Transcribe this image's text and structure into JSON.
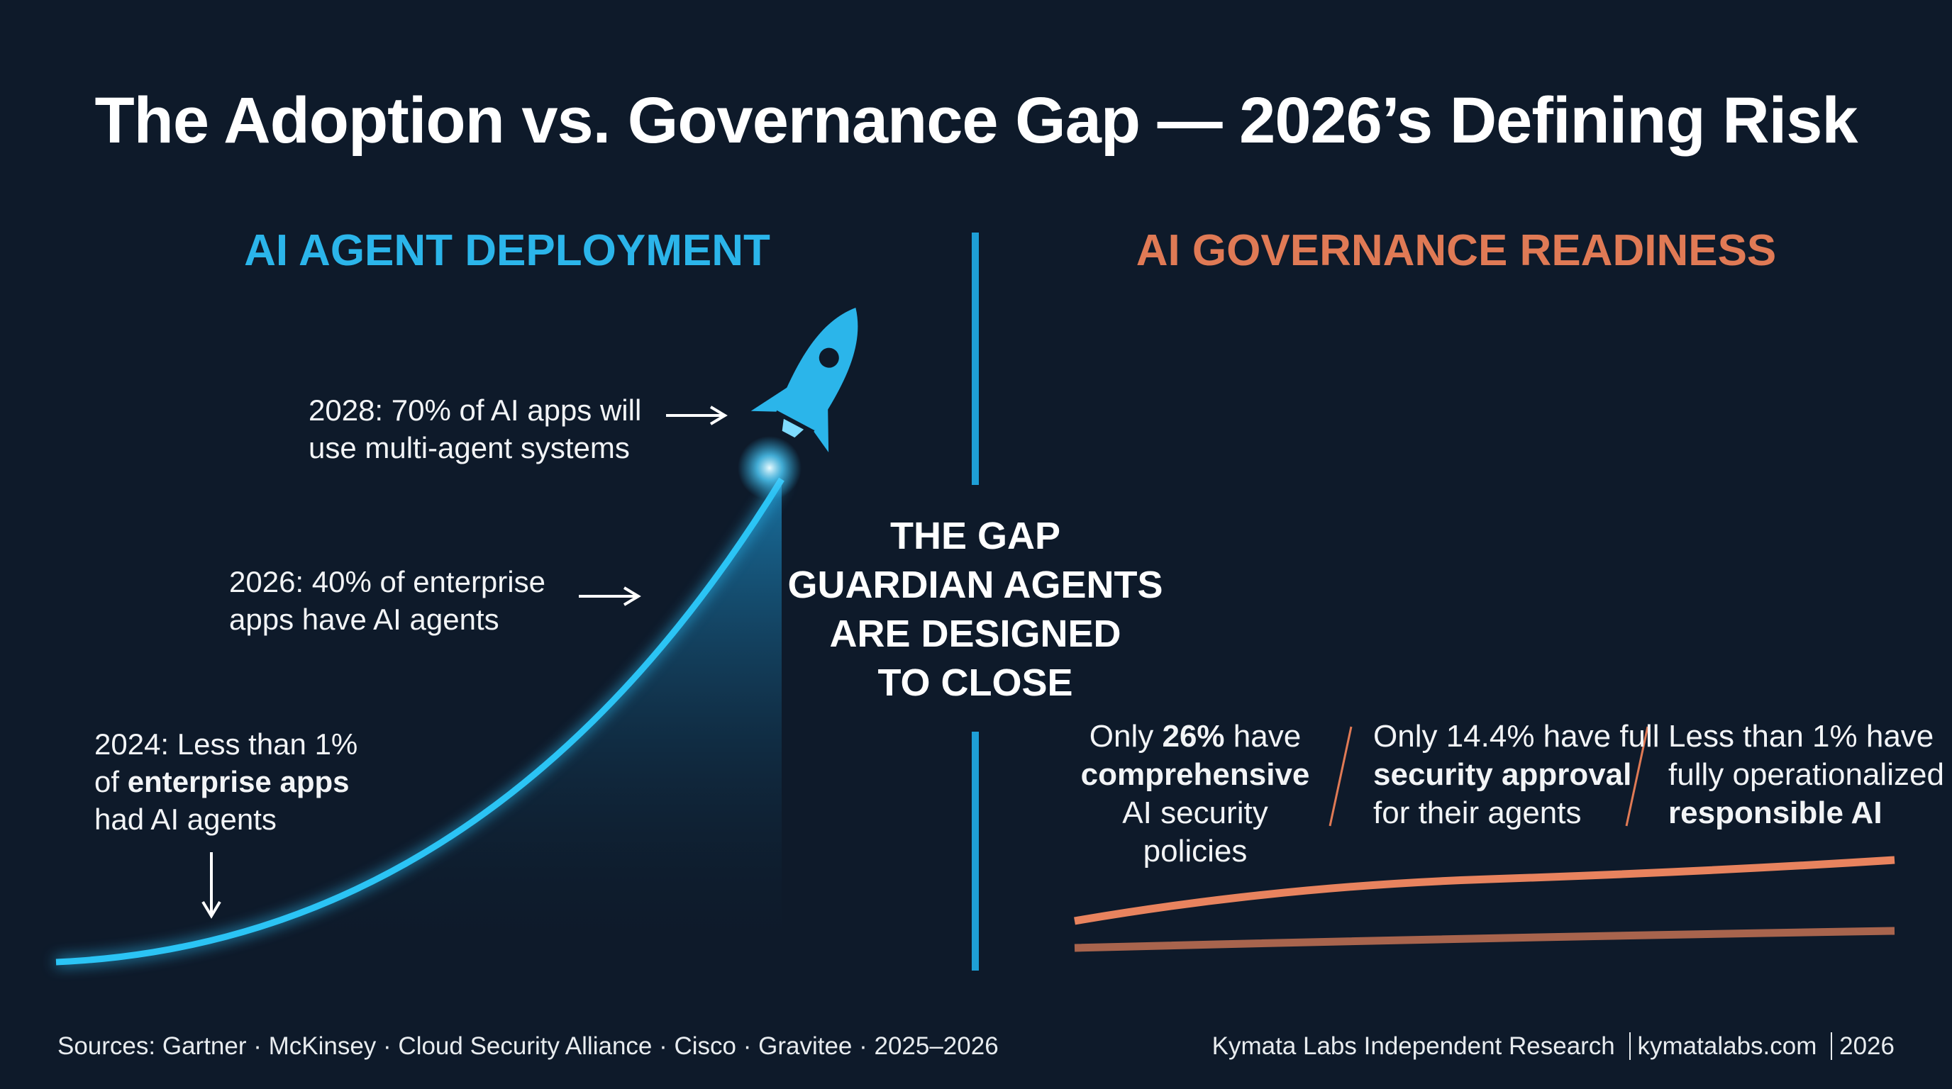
{
  "title": "The Adoption vs. Governance Gap — 2026’s Defining Risk",
  "left": {
    "heading": "AI AGENT DEPLOYMENT",
    "color": "#2bb5ea",
    "annotations": [
      {
        "lines": [
          "2028: 70% of AI apps will",
          "use multi-agent systems"
        ]
      },
      {
        "lines": [
          "2026: 40% of enterprise",
          "apps have AI agents"
        ]
      },
      {
        "line1": "2024: Less than 1%",
        "line2_pre": "of ",
        "line2_bold": "enterprise apps",
        "line3": "had AI agents"
      }
    ],
    "icon": "rocket-icon"
  },
  "right": {
    "heading": "AI GOVERNANCE READINESS",
    "color": "#e07a55",
    "stats": [
      {
        "pre": "Only ",
        "bold1": "26%",
        "post1": " have",
        "bold2": "comprehensive",
        "line3": "AI security policies"
      },
      {
        "line1": "Only 14.4% have full",
        "bold2": "security approval",
        "line3": "for their agents"
      },
      {
        "line1": "Less than 1% have",
        "line2": "fully operationalized",
        "bold3": "responsible AI"
      }
    ]
  },
  "gap": {
    "lines": [
      "THE GAP",
      "GUARDIAN AGENTS",
      "ARE DESIGNED",
      "TO CLOSE"
    ]
  },
  "footer": {
    "sources": "Sources: Gartner · McKinsey · Cloud Security Alliance · Cisco · Gravitee · 2025–2026",
    "credit": "Kymata Labs Independent Research",
    "site": "kymatalabs.com",
    "year": "2026"
  }
}
